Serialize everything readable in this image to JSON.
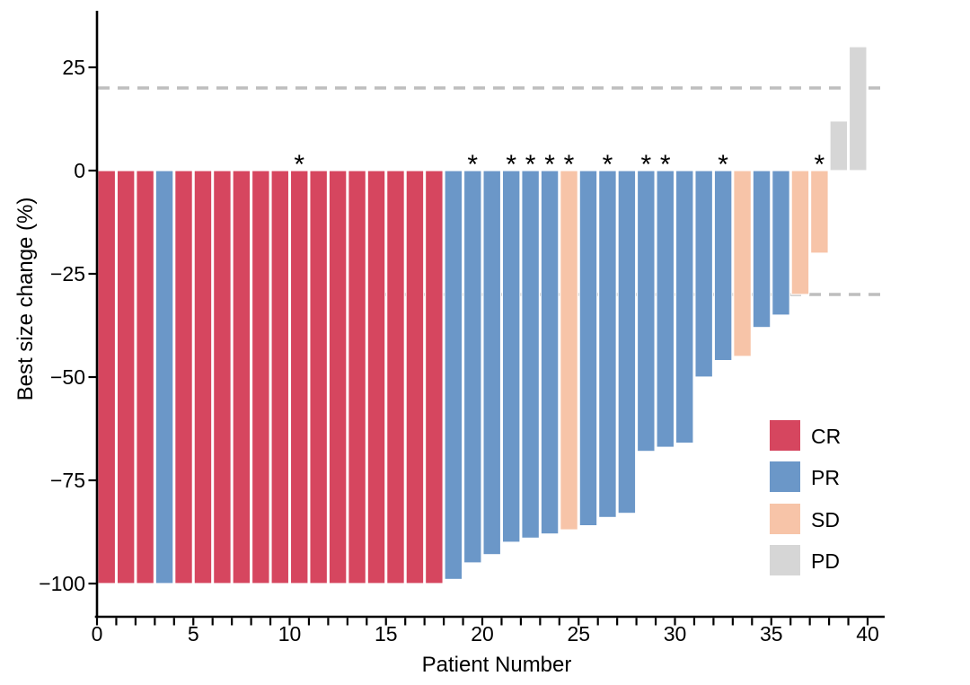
{
  "chart_data": {
    "type": "bar",
    "subtype": "waterfall",
    "title": "",
    "xlabel": "Patient Number",
    "ylabel": "Best size change (%)",
    "xlim": [
      0,
      41
    ],
    "ylim": [
      -107,
      38
    ],
    "grid": false,
    "legend_position": "inside-right",
    "x_axis": {
      "labeled_ticks": [
        0,
        5,
        10,
        15,
        20,
        25,
        30,
        35,
        40
      ],
      "minor_tick_step": 1
    },
    "y_axis": {
      "ticks": [
        {
          "v": 25,
          "label": "25"
        },
        {
          "v": 0,
          "label": "0"
        },
        {
          "v": -25,
          "label": "−25"
        },
        {
          "v": -50,
          "label": "−50"
        },
        {
          "v": -75,
          "label": "−75"
        },
        {
          "v": -100,
          "label": "−100"
        }
      ]
    },
    "reference_lines": [
      {
        "v": 20,
        "style": "dashed",
        "color": "#BEBEBE"
      },
      {
        "v": -30,
        "style": "dashed",
        "color": "#BEBEBE"
      }
    ],
    "legend": [
      {
        "label": "CR",
        "color": "#D6465F"
      },
      {
        "label": "PR",
        "color": "#6B97C8"
      },
      {
        "label": "SD",
        "color": "#F7C4A8"
      },
      {
        "label": "PD",
        "color": "#D6D6D6"
      }
    ],
    "star_marker": "*",
    "bars": [
      {
        "patient": 1,
        "value": -100,
        "response": "CR",
        "star": false
      },
      {
        "patient": 2,
        "value": -100,
        "response": "CR",
        "star": false
      },
      {
        "patient": 3,
        "value": -100,
        "response": "CR",
        "star": false
      },
      {
        "patient": 4,
        "value": -100,
        "response": "PR",
        "star": false
      },
      {
        "patient": 5,
        "value": -100,
        "response": "CR",
        "star": false
      },
      {
        "patient": 6,
        "value": -100,
        "response": "CR",
        "star": false
      },
      {
        "patient": 7,
        "value": -100,
        "response": "CR",
        "star": false
      },
      {
        "patient": 8,
        "value": -100,
        "response": "CR",
        "star": false
      },
      {
        "patient": 9,
        "value": -100,
        "response": "CR",
        "star": false
      },
      {
        "patient": 10,
        "value": -100,
        "response": "CR",
        "star": false
      },
      {
        "patient": 11,
        "value": -100,
        "response": "CR",
        "star": true
      },
      {
        "patient": 12,
        "value": -100,
        "response": "CR",
        "star": false
      },
      {
        "patient": 13,
        "value": -100,
        "response": "CR",
        "star": false
      },
      {
        "patient": 14,
        "value": -100,
        "response": "CR",
        "star": false
      },
      {
        "patient": 15,
        "value": -100,
        "response": "CR",
        "star": false
      },
      {
        "patient": 16,
        "value": -100,
        "response": "CR",
        "star": false
      },
      {
        "patient": 17,
        "value": -100,
        "response": "CR",
        "star": false
      },
      {
        "patient": 18,
        "value": -100,
        "response": "CR",
        "star": false
      },
      {
        "patient": 19,
        "value": -99,
        "response": "PR",
        "star": false
      },
      {
        "patient": 20,
        "value": -95,
        "response": "PR",
        "star": true
      },
      {
        "patient": 21,
        "value": -93,
        "response": "PR",
        "star": false
      },
      {
        "patient": 22,
        "value": -90,
        "response": "PR",
        "star": true
      },
      {
        "patient": 23,
        "value": -89,
        "response": "PR",
        "star": true
      },
      {
        "patient": 24,
        "value": -88,
        "response": "PR",
        "star": true
      },
      {
        "patient": 25,
        "value": -87,
        "response": "SD",
        "star": true
      },
      {
        "patient": 26,
        "value": -86,
        "response": "PR",
        "star": false
      },
      {
        "patient": 27,
        "value": -84,
        "response": "PR",
        "star": true
      },
      {
        "patient": 28,
        "value": -83,
        "response": "PR",
        "star": false
      },
      {
        "patient": 29,
        "value": -68,
        "response": "PR",
        "star": true
      },
      {
        "patient": 30,
        "value": -67,
        "response": "PR",
        "star": true
      },
      {
        "patient": 31,
        "value": -66,
        "response": "PR",
        "star": false
      },
      {
        "patient": 32,
        "value": -50,
        "response": "PR",
        "star": false
      },
      {
        "patient": 33,
        "value": -46,
        "response": "PR",
        "star": true
      },
      {
        "patient": 34,
        "value": -45,
        "response": "SD",
        "star": false
      },
      {
        "patient": 35,
        "value": -38,
        "response": "PR",
        "star": false
      },
      {
        "patient": 36,
        "value": -35,
        "response": "PR",
        "star": false
      },
      {
        "patient": 37,
        "value": -30,
        "response": "SD",
        "star": false
      },
      {
        "patient": 38,
        "value": -20,
        "response": "SD",
        "star": true
      },
      {
        "patient": 39,
        "value": 12,
        "response": "PD",
        "star": false
      },
      {
        "patient": 40,
        "value": 30,
        "response": "PD",
        "star": false
      }
    ]
  }
}
